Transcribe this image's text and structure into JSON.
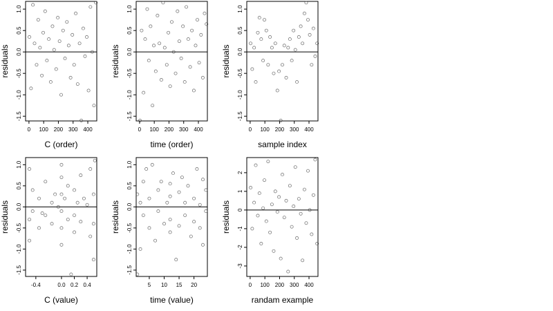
{
  "chart_data": [
    {
      "type": "scatter",
      "xlabel": "C (order)",
      "ylabel": "residuals",
      "color": "#444444",
      "hline": 0,
      "xlim": [
        -23,
        461
      ],
      "ylim": [
        -1.61,
        1.18
      ],
      "xticks": [
        0,
        100,
        200,
        300,
        400
      ],
      "yticks": [
        {
          "value": 1,
          "label": "1.0"
        },
        0.5,
        {
          "value": 0,
          "label": "0.0"
        },
        -0.5,
        {
          "value": -1,
          "label": "-1.0"
        },
        -1.5
      ],
      "x": [
        3,
        14,
        27,
        38,
        52,
        63,
        75,
        88,
        97,
        110,
        122,
        135,
        148,
        160,
        171,
        185,
        196,
        208,
        219,
        232,
        245,
        258,
        270,
        283,
        295,
        307,
        318,
        331,
        344,
        356,
        369,
        381,
        393,
        405,
        418,
        430,
        442,
        455
      ],
      "y": [
        0.35,
        -0.85,
        1.1,
        0.2,
        -0.3,
        0.75,
        0.1,
        -0.55,
        0.45,
        0.95,
        -0.2,
        0.3,
        -0.7,
        0.6,
        0.05,
        -0.4,
        0.8,
        0.25,
        -1.0,
        0.5,
        -0.15,
        0.7,
        0.15,
        -0.6,
        0.4,
        -0.3,
        0.9,
        -0.75,
        0.2,
        -1.6,
        0.55,
        -0.1,
        0.35,
        -0.9,
        1.05,
        0.0,
        -1.25,
        1.15
      ]
    },
    {
      "type": "scatter",
      "xlabel": "time (order)",
      "ylabel": "residuals",
      "color": "#444444",
      "hline": 0,
      "xlim": [
        -23,
        461
      ],
      "ylim": [
        -1.61,
        1.18
      ],
      "xticks": [
        0,
        100,
        200,
        300,
        400
      ],
      "yticks": [
        {
          "value": 1,
          "label": "1.0"
        },
        0.5,
        {
          "value": 0,
          "label": "0.0"
        },
        -0.5,
        {
          "value": -1,
          "label": "-1.0"
        },
        -1.5
      ],
      "x": [
        3,
        14,
        27,
        38,
        52,
        63,
        75,
        88,
        97,
        110,
        122,
        135,
        148,
        160,
        171,
        185,
        196,
        208,
        219,
        232,
        245,
        258,
        270,
        283,
        295,
        307,
        318,
        331,
        344,
        356,
        369,
        381,
        393,
        405,
        418,
        430,
        442,
        455
      ],
      "y": [
        -1.6,
        0.5,
        -0.95,
        0.3,
        1.0,
        -0.2,
        0.6,
        -1.25,
        0.15,
        -0.45,
        0.85,
        0.2,
        -0.65,
        1.15,
        0.1,
        -0.3,
        0.45,
        -0.8,
        0.7,
        0.0,
        -0.5,
        0.95,
        0.25,
        -0.15,
        0.6,
        -0.7,
        1.05,
        0.3,
        -0.35,
        0.5,
        -0.9,
        0.15,
        0.75,
        -0.25,
        0.4,
        -0.6,
        0.9,
        0.65
      ]
    },
    {
      "type": "scatter",
      "xlabel": "sample index",
      "ylabel": "residuals",
      "color": "#444444",
      "hline": 0,
      "xlim": [
        -23,
        461
      ],
      "ylim": [
        -1.61,
        1.18
      ],
      "xticks": [
        0,
        100,
        200,
        300,
        400
      ],
      "yticks": [
        {
          "value": 1,
          "label": "1.0"
        },
        0.5,
        {
          "value": 0,
          "label": "0.0"
        },
        -0.5,
        {
          "value": -1,
          "label": "-1.0"
        },
        -1.5
      ],
      "x": [
        3,
        14,
        27,
        38,
        52,
        63,
        75,
        88,
        97,
        110,
        122,
        135,
        148,
        160,
        171,
        185,
        196,
        208,
        219,
        232,
        245,
        258,
        270,
        283,
        295,
        307,
        318,
        331,
        344,
        356,
        369,
        381,
        393,
        405,
        418,
        430,
        442,
        455
      ],
      "y": [
        0.2,
        -0.4,
        0.1,
        -0.7,
        0.45,
        0.8,
        0.3,
        -0.2,
        0.75,
        0.5,
        -0.3,
        0.35,
        0.1,
        -0.5,
        0.2,
        -0.9,
        -0.45,
        -1.6,
        -0.3,
        0.15,
        -0.6,
        0.1,
        0.3,
        -0.2,
        0.5,
        0.05,
        -0.7,
        0.35,
        0.6,
        0.2,
        0.9,
        1.15,
        0.75,
        0.4,
        -0.3,
        0.55,
        -0.1,
        0.2
      ]
    },
    {
      "type": "scatter",
      "xlabel": "C (value)",
      "ylabel": "residuals",
      "color": "#444444",
      "hline": 0,
      "xlim": [
        -0.56,
        0.55
      ],
      "ylim": [
        -1.65,
        1.17
      ],
      "xticks": [
        -0.4,
        {
          "value": 0,
          "label": "0.0"
        },
        0.2,
        0.4
      ],
      "yticks": [
        {
          "value": 1,
          "label": "1.0"
        },
        0.5,
        {
          "value": 0,
          "label": "0.0"
        },
        -0.5,
        {
          "value": -1,
          "label": "-1.0"
        },
        -1.5
      ],
      "x": [
        -0.5,
        -0.5,
        -0.5,
        -0.45,
        -0.45,
        -0.35,
        -0.35,
        -0.25,
        -0.25,
        -0.15,
        -0.15,
        -0.1,
        0.0,
        0.0,
        0.0,
        0.0,
        0.0,
        0.0,
        0.05,
        0.1,
        0.1,
        0.2,
        0.2,
        0.2,
        0.25,
        0.3,
        0.3,
        0.35,
        0.4,
        0.45,
        0.45,
        0.5,
        0.5,
        0.5,
        -0.05,
        -0.3,
        0.15,
        0.52
      ],
      "y": [
        0.9,
        -0.3,
        -0.8,
        0.4,
        -0.1,
        0.2,
        -0.5,
        0.6,
        -0.2,
        0.1,
        -0.4,
        0.3,
        1.0,
        0.7,
        0.3,
        -0.1,
        -0.5,
        -0.9,
        0.2,
        0.5,
        -0.3,
        0.4,
        -0.6,
        -0.2,
        0.1,
        0.75,
        -0.35,
        0.2,
        0.05,
        0.9,
        -0.7,
        0.3,
        -0.4,
        -1.25,
        0.0,
        -0.15,
        -1.6,
        1.1
      ]
    },
    {
      "type": "scatter",
      "xlabel": "time (value)",
      "ylabel": "residuals",
      "color": "#444444",
      "hline": 0,
      "xlim": [
        0.6,
        24.5
      ],
      "ylim": [
        -1.65,
        1.17
      ],
      "xticks": [
        5,
        10,
        15,
        20
      ],
      "yticks": [
        {
          "value": 1,
          "label": "1.0"
        },
        0.5,
        {
          "value": 0,
          "label": "0.0"
        },
        -0.5,
        {
          "value": -1,
          "label": "-1.0"
        },
        -1.5
      ],
      "x": [
        1,
        1,
        2,
        3,
        3,
        4,
        5,
        5,
        6,
        7,
        8,
        8,
        9,
        10,
        11,
        12,
        12,
        12,
        12,
        13,
        14,
        15,
        15,
        16,
        17,
        17,
        18,
        19,
        20,
        20,
        21,
        22,
        22,
        23,
        23,
        24,
        24,
        2
      ],
      "y": [
        -1.6,
        0.3,
        -1.0,
        0.6,
        -0.2,
        0.9,
        -0.5,
        0.2,
        1.0,
        -0.8,
        0.4,
        -0.1,
        0.6,
        -0.4,
        0.1,
        0.55,
        -0.3,
        0.25,
        -0.6,
        0.8,
        -1.25,
        0.35,
        -0.45,
        0.7,
        0.1,
        -0.2,
        0.5,
        -0.7,
        0.2,
        -0.35,
        0.9,
        0.05,
        -0.5,
        0.65,
        -0.9,
        0.4,
        -0.1,
        0.1
      ]
    },
    {
      "type": "scatter",
      "xlabel": "randam example",
      "ylabel": "residuals",
      "color": "#444444",
      "hline": 0,
      "xlim": [
        -23,
        461
      ],
      "ylim": [
        -3.56,
        2.81
      ],
      "xticks": [
        0,
        100,
        200,
        300,
        400
      ],
      "yticks": [
        -3,
        -2,
        -1,
        0,
        1,
        2
      ],
      "x": [
        3,
        14,
        27,
        38,
        52,
        63,
        75,
        88,
        97,
        110,
        122,
        135,
        148,
        160,
        171,
        185,
        196,
        208,
        219,
        232,
        245,
        258,
        270,
        283,
        295,
        307,
        318,
        331,
        344,
        356,
        369,
        381,
        393,
        405,
        418,
        430,
        442,
        455
      ],
      "y": [
        1.2,
        -1.0,
        0.4,
        2.4,
        -0.3,
        0.9,
        -1.8,
        0.1,
        1.6,
        -0.6,
        2.6,
        -1.2,
        0.3,
        -2.2,
        1.0,
        -0.1,
        0.7,
        -2.6,
        1.9,
        -0.4,
        0.5,
        -3.3,
        1.3,
        -0.9,
        0.2,
        2.3,
        -1.5,
        0.6,
        -0.2,
        -2.7,
        1.1,
        -0.7,
        2.1,
        0.0,
        -1.3,
        0.8,
        2.7,
        -1.8
      ]
    }
  ]
}
